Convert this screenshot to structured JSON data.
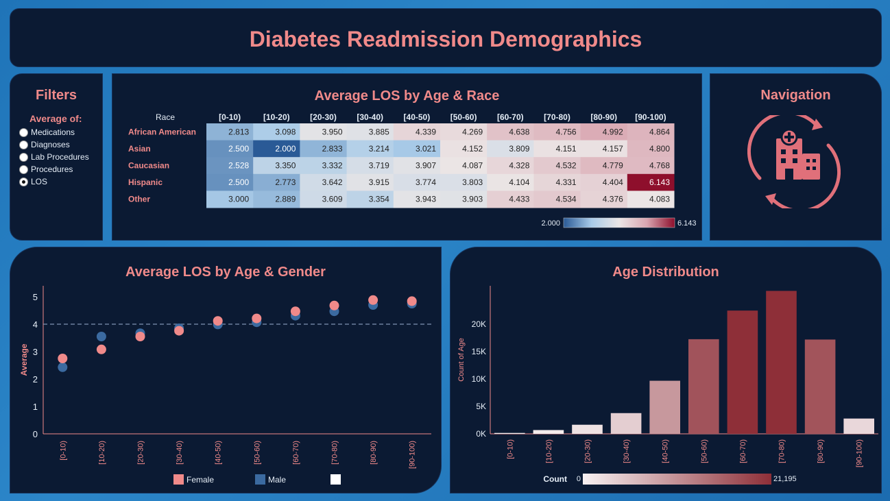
{
  "dashboard": {
    "title": "Diabetes Readmission Demographics"
  },
  "filters": {
    "title": "Filters",
    "subtitle": "Average of:",
    "options": [
      {
        "label": "Medications",
        "checked": false
      },
      {
        "label": "Diagnoses",
        "checked": false
      },
      {
        "label": "Lab Procedures",
        "checked": false
      },
      {
        "label": "Procedures",
        "checked": false
      },
      {
        "label": "LOS",
        "checked": true
      }
    ]
  },
  "navigation": {
    "title": "Navigation",
    "icon": "hospital-refresh-icon"
  },
  "colors": {
    "accent": "#f08a8a",
    "panel": "#0b1a33",
    "male": "#3b6aa0",
    "female": "#f08a8a"
  },
  "chart_data": [
    {
      "type": "heatmap",
      "title": "Average LOS by Age & Race",
      "row_header": "Race",
      "columns": [
        "[0-10)",
        "[10-20)",
        "[20-30)",
        "[30-40)",
        "[40-50)",
        "[50-60)",
        "[60-70)",
        "[70-80)",
        "[80-90)",
        "[90-100)"
      ],
      "rows": [
        "African American",
        "Asian",
        "Caucasian",
        "Hispanic",
        "Other"
      ],
      "values": [
        [
          2.813,
          3.098,
          3.95,
          3.885,
          4.339,
          4.269,
          4.638,
          4.756,
          4.992,
          4.864
        ],
        [
          2.5,
          2.0,
          2.833,
          3.214,
          3.021,
          4.152,
          3.809,
          4.151,
          4.157,
          4.8
        ],
        [
          2.528,
          3.35,
          3.332,
          3.719,
          3.907,
          4.087,
          4.328,
          4.532,
          4.779,
          4.768
        ],
        [
          2.5,
          2.773,
          3.642,
          3.915,
          3.774,
          3.803,
          4.104,
          4.331,
          4.404,
          6.143
        ],
        [
          3.0,
          2.889,
          3.609,
          3.354,
          3.943,
          3.903,
          4.433,
          4.534,
          4.376,
          4.083
        ]
      ],
      "value_labels": [
        [
          "2.813",
          "3.098",
          "3.950",
          "3.885",
          "4.339",
          "4.269",
          "4.638",
          "4.756",
          "4.992",
          "4.864"
        ],
        [
          "2.500",
          "2.000",
          "2.833",
          "3.214",
          "3.021",
          "4.152",
          "3.809",
          "4.151",
          "4.157",
          "4.800"
        ],
        [
          "2.528",
          "3.350",
          "3.332",
          "3.719",
          "3.907",
          "4.087",
          "4.328",
          "4.532",
          "4.779",
          "4.768"
        ],
        [
          "2.500",
          "2.773",
          "3.642",
          "3.915",
          "3.774",
          "3.803",
          "4.104",
          "4.331",
          "4.404",
          "6.143"
        ],
        [
          "3.000",
          "2.889",
          "3.609",
          "3.354",
          "3.943",
          "3.903",
          "4.433",
          "4.534",
          "4.376",
          "4.083"
        ]
      ],
      "color_range": [
        2.0,
        6.143
      ],
      "color_range_labels": [
        "2.000",
        "6.143"
      ],
      "color_scale": [
        "#2a5a96",
        "#a9cbe8",
        "#ebe6e6",
        "#d9a5b0",
        "#8e0f2c"
      ]
    },
    {
      "type": "scatter",
      "title": "Average LOS by Age & Gender",
      "ylabel": "Average",
      "categories": [
        "[0-10)",
        "[10-20)",
        "[20-30)",
        "[30-40)",
        "[40-50)",
        "[50-60)",
        "[60-70)",
        "[70-80)",
        "[80-90)",
        "[90-100)"
      ],
      "yticks": [
        "0",
        "1",
        "2",
        "3",
        "4",
        "5"
      ],
      "ylim": [
        0,
        5.4
      ],
      "reference_line": 4.0,
      "series": [
        {
          "name": "Male",
          "color": "#3b6aa0",
          "values": [
            2.43,
            3.55,
            3.67,
            3.85,
            3.99,
            4.07,
            4.31,
            4.47,
            4.7,
            4.75
          ]
        },
        {
          "name": "Female",
          "color": "#f08a8a",
          "values": [
            2.75,
            3.08,
            3.55,
            3.76,
            4.12,
            4.21,
            4.47,
            4.68,
            4.88,
            4.84
          ]
        }
      ],
      "legend": [
        "Female",
        "Male",
        ""
      ]
    },
    {
      "type": "bar",
      "title": "Age Distribution",
      "ylabel": "Count of Age",
      "categories": [
        "[0-10)",
        "[10-20)",
        "[20-30)",
        "[30-40)",
        "[40-50)",
        "[50-60)",
        "[60-70)",
        "[70-80)",
        "[80-90)",
        "[90-100)"
      ],
      "values": [
        160,
        690,
        1660,
        3780,
        9680,
        17260,
        22480,
        26070,
        17200,
        2790
      ],
      "yticks": [
        "0K",
        "5K",
        "10K",
        "15K",
        "20K"
      ],
      "ylim": [
        0,
        27000
      ],
      "legend_title": "Count",
      "color_range": [
        0,
        21195
      ],
      "color_range_labels": [
        "0",
        "21,195"
      ]
    }
  ]
}
